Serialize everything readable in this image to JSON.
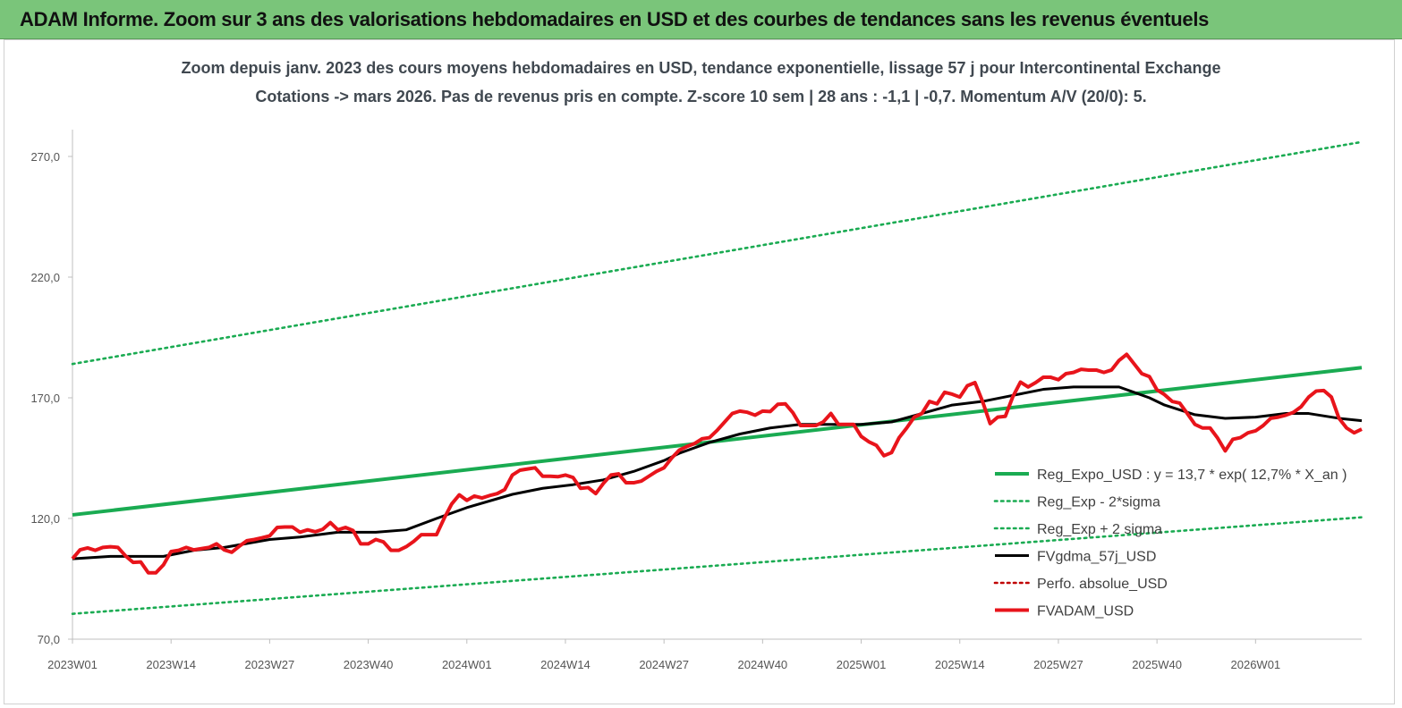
{
  "banner": {
    "title": "ADAM Informe. Zoom sur 3 ans des valorisations hebdomadaires en USD et des courbes de tendances sans les revenus éventuels"
  },
  "colors": {
    "banner_bg": "#7ac57a",
    "trend_green": "#1aab52",
    "smooth_black": "#000000",
    "price_red": "#e8141b",
    "perf_red": "#c00000"
  },
  "chart_data": {
    "type": "line",
    "title": "Zoom depuis janv. 2023 des cours moyens hebdomadaires en USD, tendance exponentielle, lissage 57 j pour Intercontinental Exchange",
    "subtitle": "Cotations -> mars 2026. Pas de revenus pris en  compte. Z-score 10 sem  | 28 ans : -1,1 | -0,7. Momentum A/V (20/0): 5.",
    "xlabel": "",
    "ylabel": "",
    "ylim": [
      70,
      270
    ],
    "yticks": [
      "70,0",
      "120,0",
      "170,0",
      "220,0",
      "270,0"
    ],
    "yticks_values": [
      70,
      120,
      170,
      220,
      270
    ],
    "xticks": [
      "2023W01",
      "2023W14",
      "2023W27",
      "2023W40",
      "2024W01",
      "2024W14",
      "2024W27",
      "2024W40",
      "2025W01",
      "2025W14",
      "2025W27",
      "2025W40",
      "2026W01"
    ],
    "xticks_index": [
      0,
      13,
      26,
      39,
      52,
      65,
      78,
      91,
      104,
      117,
      130,
      143,
      156
    ],
    "x_count": 171,
    "grid": false,
    "legend_position": "bottom-right",
    "series": [
      {
        "name": "Reg_Expo_USD : y = 13,7 * exp( 12,7% *  X_an )",
        "style": "solid-thick",
        "color": "#1aab52",
        "points": [
          [
            0,
            121.5
          ],
          [
            170,
            182.5
          ]
        ]
      },
      {
        "name": "Reg_Exp - 2*sigma",
        "style": "dotted",
        "color": "#1aab52",
        "points": [
          [
            0,
            80.5
          ],
          [
            170,
            120.5
          ]
        ]
      },
      {
        "name": "Reg_Exp + 2 sigma",
        "style": "dotted",
        "color": "#1aab52",
        "points": [
          [
            0,
            184
          ],
          [
            170,
            276
          ]
        ]
      },
      {
        "name": "FVgdma_57j_USD",
        "style": "solid",
        "color": "#000000",
        "points": [
          [
            0,
            103.3
          ],
          [
            5,
            104.3
          ],
          [
            10,
            104.3
          ],
          [
            12,
            104.3
          ],
          [
            16,
            106.8
          ],
          [
            20,
            108.0
          ],
          [
            26,
            111.3
          ],
          [
            30,
            112.3
          ],
          [
            35,
            114.3
          ],
          [
            40,
            114.3
          ],
          [
            44,
            115.3
          ],
          [
            48,
            120.0
          ],
          [
            52,
            124.5
          ],
          [
            58,
            130.0
          ],
          [
            62,
            132.5
          ],
          [
            66,
            134.0
          ],
          [
            70,
            136.0
          ],
          [
            74,
            139.5
          ],
          [
            78,
            144.0
          ],
          [
            80,
            147.0
          ],
          [
            84,
            151.5
          ],
          [
            88,
            155.0
          ],
          [
            92,
            157.5
          ],
          [
            96,
            159.0
          ],
          [
            100,
            159.0
          ],
          [
            104,
            159.0
          ],
          [
            108,
            160.0
          ],
          [
            112,
            163.5
          ],
          [
            116,
            167.0
          ],
          [
            120,
            168.5
          ],
          [
            124,
            171.0
          ],
          [
            128,
            173.5
          ],
          [
            132,
            174.5
          ],
          [
            138,
            174.5
          ],
          [
            142,
            170.0
          ],
          [
            144,
            167.0
          ],
          [
            148,
            163.0
          ],
          [
            152,
            161.5
          ],
          [
            156,
            162.0
          ],
          [
            160,
            163.5
          ],
          [
            163,
            163.5
          ],
          [
            167,
            161.5
          ],
          [
            170,
            160.5
          ]
        ]
      },
      {
        "name": "Perfo. absolue_USD",
        "style": "dotted",
        "color": "#c00000",
        "points": []
      },
      {
        "name": "FVADAM_USD",
        "style": "solid-thick",
        "color": "#e8141b",
        "points": [
          [
            0,
            103.3
          ],
          [
            1,
            107.0
          ],
          [
            2,
            107.8
          ],
          [
            3,
            106.8
          ],
          [
            4,
            108.0
          ],
          [
            5,
            108.3
          ],
          [
            6,
            108.0
          ],
          [
            7,
            104.5
          ],
          [
            8,
            101.8
          ],
          [
            9,
            102.0
          ],
          [
            10,
            97.5
          ],
          [
            11,
            97.5
          ],
          [
            12,
            100.8
          ],
          [
            13,
            106.3
          ],
          [
            14,
            106.8
          ],
          [
            15,
            108.0
          ],
          [
            16,
            107.0
          ],
          [
            17,
            107.5
          ],
          [
            18,
            108.0
          ],
          [
            19,
            109.5
          ],
          [
            20,
            107.0
          ],
          [
            21,
            106.0
          ],
          [
            22,
            108.5
          ],
          [
            23,
            110.8
          ],
          [
            24,
            111.3
          ],
          [
            25,
            112.0
          ],
          [
            26,
            112.8
          ],
          [
            27,
            116.3
          ],
          [
            28,
            116.5
          ],
          [
            29,
            116.5
          ],
          [
            30,
            114.3
          ],
          [
            31,
            115.3
          ],
          [
            32,
            114.5
          ],
          [
            33,
            115.5
          ],
          [
            34,
            118.3
          ],
          [
            35,
            115.3
          ],
          [
            36,
            116.3
          ],
          [
            37,
            115.0
          ],
          [
            38,
            109.5
          ],
          [
            39,
            109.5
          ],
          [
            40,
            111.3
          ],
          [
            41,
            110.3
          ],
          [
            42,
            106.8
          ],
          [
            43,
            106.8
          ],
          [
            44,
            108.3
          ],
          [
            45,
            110.5
          ],
          [
            46,
            113.3
          ],
          [
            47,
            113.3
          ],
          [
            48,
            113.3
          ],
          [
            49,
            120.0
          ],
          [
            50,
            126.0
          ],
          [
            51,
            129.8
          ],
          [
            52,
            127.5
          ],
          [
            53,
            129.3
          ],
          [
            54,
            128.5
          ],
          [
            55,
            129.5
          ],
          [
            56,
            130.3
          ],
          [
            57,
            132.0
          ],
          [
            58,
            138.0
          ],
          [
            59,
            140.0
          ],
          [
            60,
            140.5
          ],
          [
            61,
            141.0
          ],
          [
            62,
            137.5
          ],
          [
            63,
            137.5
          ],
          [
            64,
            137.3
          ],
          [
            65,
            138.0
          ],
          [
            66,
            137.0
          ],
          [
            67,
            132.5
          ],
          [
            68,
            132.8
          ],
          [
            69,
            130.3
          ],
          [
            70,
            134.5
          ],
          [
            71,
            138.0
          ],
          [
            72,
            138.5
          ],
          [
            73,
            134.8
          ],
          [
            74,
            134.8
          ],
          [
            75,
            135.5
          ],
          [
            76,
            137.5
          ],
          [
            77,
            139.5
          ],
          [
            78,
            141.0
          ],
          [
            79,
            145.0
          ],
          [
            80,
            148.3
          ],
          [
            81,
            149.8
          ],
          [
            82,
            151.0
          ],
          [
            83,
            153.0
          ],
          [
            84,
            153.5
          ],
          [
            85,
            156.5
          ],
          [
            86,
            160.0
          ],
          [
            87,
            163.5
          ],
          [
            88,
            164.5
          ],
          [
            89,
            164.0
          ],
          [
            90,
            162.8
          ],
          [
            91,
            164.5
          ],
          [
            92,
            164.3
          ],
          [
            93,
            167.3
          ],
          [
            94,
            167.5
          ],
          [
            95,
            163.8
          ],
          [
            96,
            158.5
          ],
          [
            97,
            158.5
          ],
          [
            98,
            158.5
          ],
          [
            99,
            160.0
          ],
          [
            100,
            163.5
          ],
          [
            101,
            159.0
          ],
          [
            102,
            159.0
          ],
          [
            103,
            159.0
          ],
          [
            104,
            154.0
          ],
          [
            105,
            151.8
          ],
          [
            106,
            150.3
          ],
          [
            107,
            146.0
          ],
          [
            108,
            147.3
          ],
          [
            109,
            153.5
          ],
          [
            110,
            157.5
          ],
          [
            111,
            162.0
          ],
          [
            112,
            163.5
          ],
          [
            113,
            168.5
          ],
          [
            114,
            167.5
          ],
          [
            115,
            172.3
          ],
          [
            116,
            171.5
          ],
          [
            117,
            170.3
          ],
          [
            118,
            175.0
          ],
          [
            119,
            176.3
          ],
          [
            120,
            168.5
          ],
          [
            121,
            159.3
          ],
          [
            122,
            162.0
          ],
          [
            123,
            162.3
          ],
          [
            124,
            170.5
          ],
          [
            125,
            176.5
          ],
          [
            126,
            174.5
          ],
          [
            127,
            176.3
          ],
          [
            128,
            178.5
          ],
          [
            129,
            178.5
          ],
          [
            130,
            177.5
          ],
          [
            131,
            180.0
          ],
          [
            132,
            180.5
          ],
          [
            133,
            181.8
          ],
          [
            134,
            181.5
          ],
          [
            135,
            181.5
          ],
          [
            136,
            180.5
          ],
          [
            137,
            181.5
          ],
          [
            138,
            185.5
          ],
          [
            139,
            188.0
          ],
          [
            140,
            184.0
          ],
          [
            141,
            180.0
          ],
          [
            142,
            178.8
          ],
          [
            143,
            173.3
          ],
          [
            144,
            171.3
          ],
          [
            145,
            168.5
          ],
          [
            146,
            167.8
          ],
          [
            147,
            163.5
          ],
          [
            148,
            159.0
          ],
          [
            149,
            157.5
          ],
          [
            150,
            157.5
          ],
          [
            151,
            153.3
          ],
          [
            152,
            148.0
          ],
          [
            153,
            152.8
          ],
          [
            154,
            153.5
          ],
          [
            155,
            155.5
          ],
          [
            156,
            156.3
          ],
          [
            157,
            158.5
          ],
          [
            158,
            161.5
          ],
          [
            159,
            162.0
          ],
          [
            160,
            162.8
          ],
          [
            161,
            164.0
          ],
          [
            162,
            166.3
          ],
          [
            163,
            170.3
          ],
          [
            164,
            172.8
          ],
          [
            165,
            173.0
          ],
          [
            166,
            170.3
          ],
          [
            167,
            161.5
          ],
          [
            168,
            157.5
          ],
          [
            169,
            155.5
          ],
          [
            170,
            157.0
          ]
        ]
      }
    ]
  }
}
